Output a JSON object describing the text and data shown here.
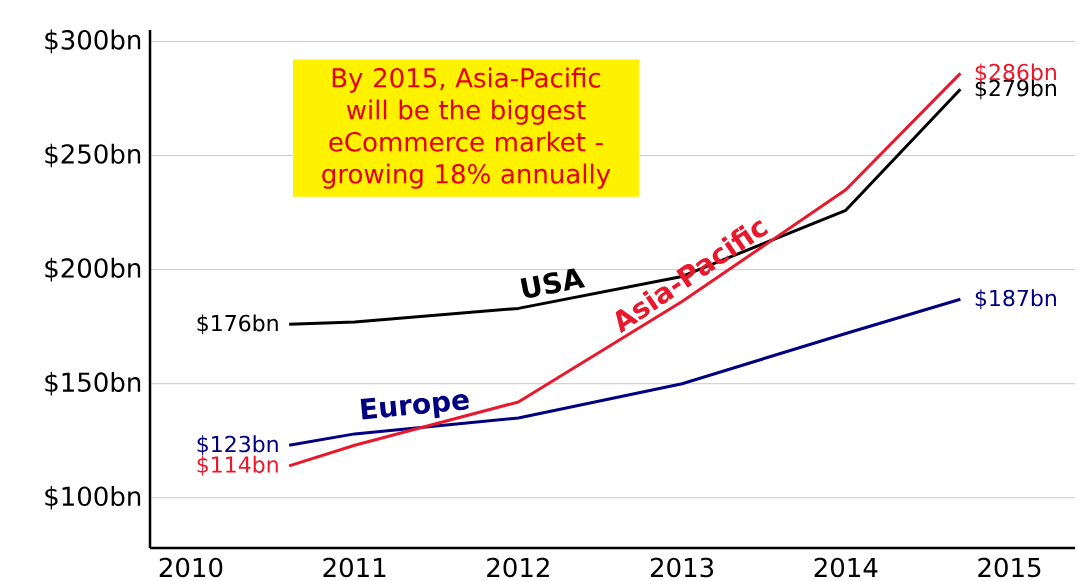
{
  "chart_data": {
    "type": "line",
    "xlim": [
      2009.75,
      2015.4
    ],
    "ylim": [
      78,
      305
    ],
    "xticks": [
      2010,
      2011,
      2012,
      2013,
      2014,
      2015
    ],
    "yticks": [
      {
        "value": 100,
        "label": "$100bn"
      },
      {
        "value": 150,
        "label": "$150bn"
      },
      {
        "value": 200,
        "label": "$200bn"
      },
      {
        "value": 250,
        "label": "$250bn"
      },
      {
        "value": 300,
        "label": "$300bn"
      }
    ],
    "grid": "y",
    "marker": "none",
    "line_style": "solid",
    "series": [
      {
        "name": "USA",
        "color": "#000000",
        "x": [
          2010.6,
          2011,
          2012,
          2013,
          2014,
          2014.7
        ],
        "values": [
          176,
          177,
          183,
          197,
          226,
          279
        ],
        "value_labels": [
          "$176bn",
          null,
          null,
          null,
          null,
          "$279bn"
        ]
      },
      {
        "name": "Europe",
        "color": "#000080",
        "x": [
          2010.6,
          2011,
          2012,
          2013,
          2014,
          2014.7
        ],
        "values": [
          123,
          128,
          135,
          150,
          172,
          187
        ],
        "value_labels": [
          "$123bn",
          null,
          null,
          null,
          null,
          "$187bn"
        ]
      },
      {
        "name": "Asia-Pacific",
        "color": "#e8192c",
        "x": [
          2010.6,
          2011,
          2012,
          2013,
          2014,
          2014.7
        ],
        "values": [
          114,
          123,
          142,
          186,
          235,
          286
        ],
        "value_labels": [
          "$114bn",
          null,
          null,
          null,
          null,
          "$286bn"
        ]
      }
    ],
    "annotations": [
      "By 2015, Asia-Pacific will be the biggest eCommerce market - growing 18% annually"
    ]
  }
}
